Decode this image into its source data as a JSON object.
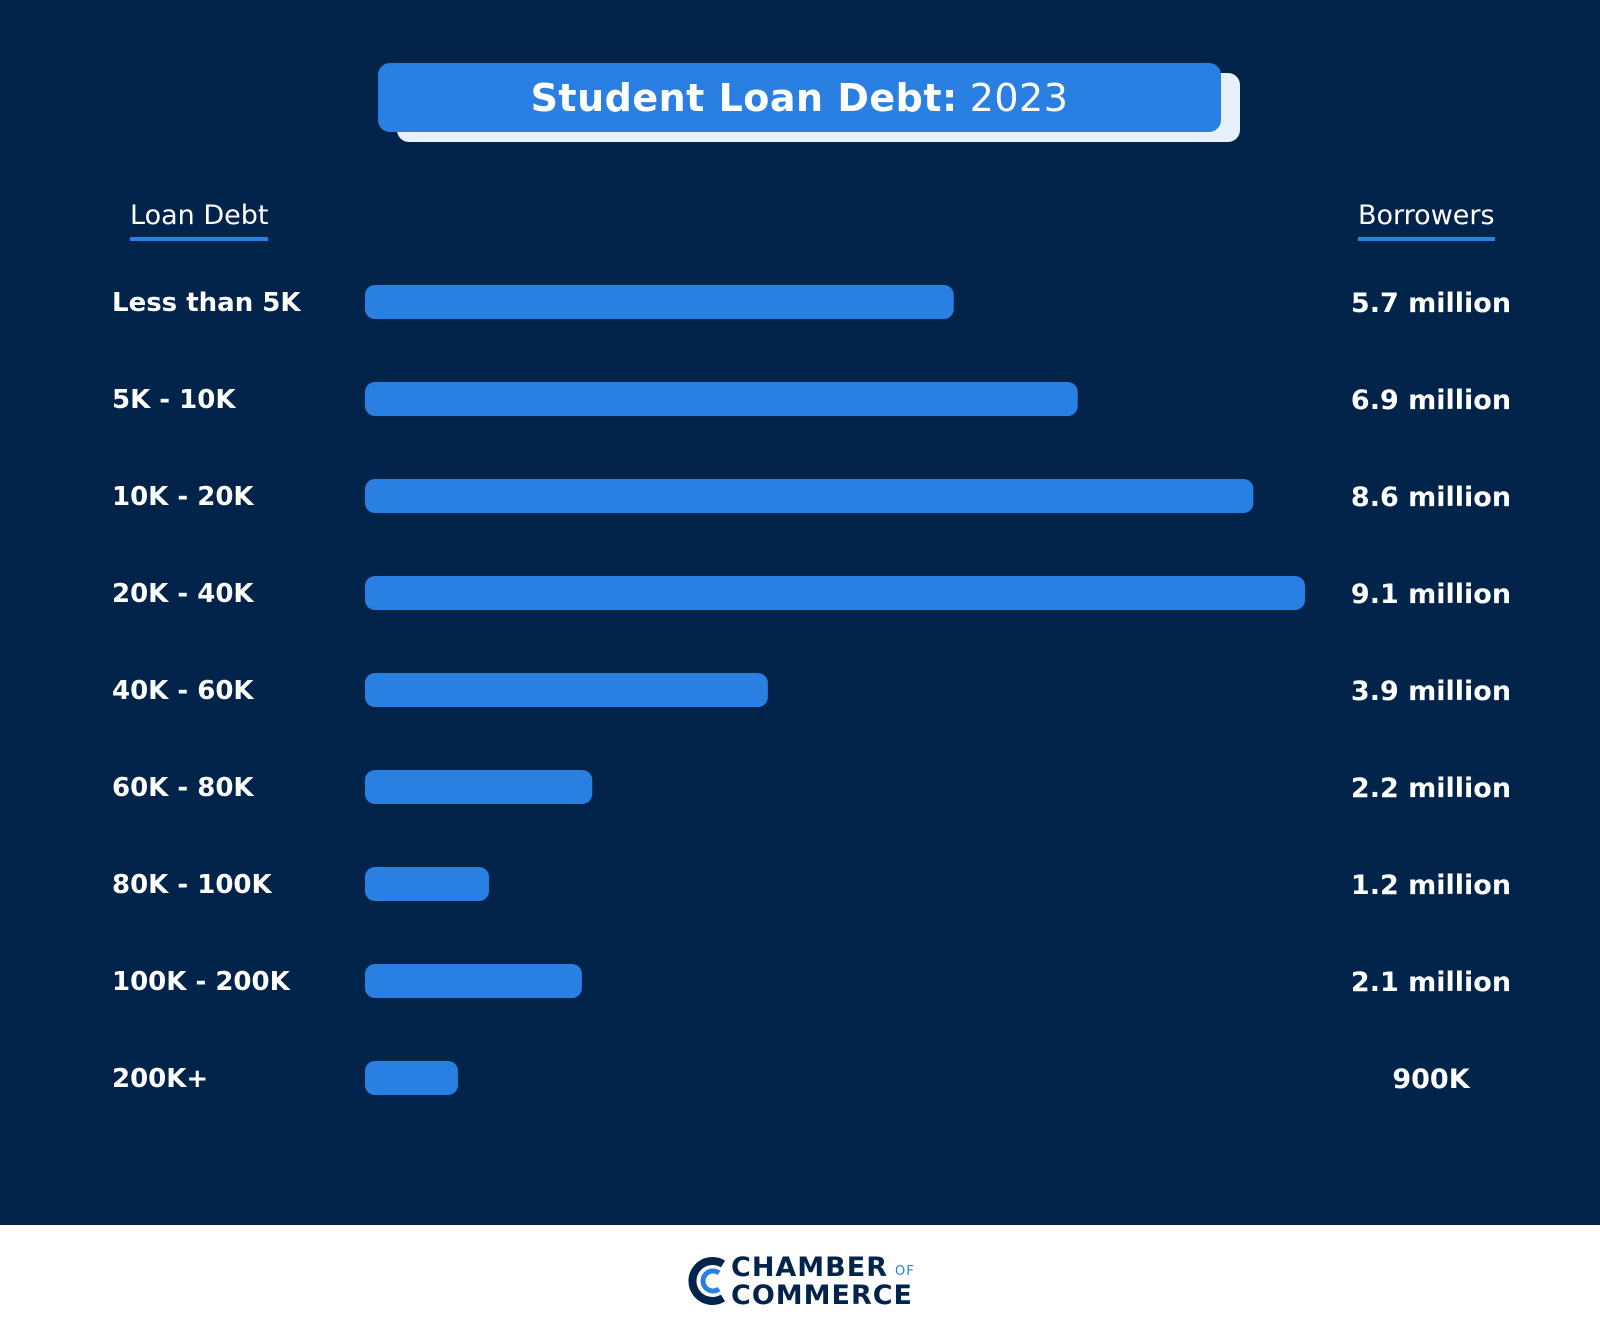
{
  "chart_data": {
    "type": "bar",
    "orientation": "horizontal",
    "title": "Student Loan Debt:",
    "title_year": "2023",
    "left_column_header": "Loan Debt",
    "right_column_header": "Borrowers",
    "categories": [
      "Less than 5K",
      "5K - 10K",
      "10K - 20K",
      "20K - 40K",
      "40K - 60K",
      "60K - 80K",
      "80K - 100K",
      "100K - 200K",
      "200K+"
    ],
    "values": [
      5.7,
      6.9,
      8.6,
      9.1,
      3.9,
      2.2,
      1.2,
      2.1,
      0.9
    ],
    "value_unit": "million",
    "value_labels": [
      "5.7 million",
      "6.9 million",
      "8.6 million",
      "9.1 million",
      "3.9 million",
      "2.2 million",
      "1.2 million",
      "2.1 million",
      "900K"
    ],
    "bar_color": "#2a80e2",
    "background_color": "#02244b"
  },
  "brand": {
    "line1": "CHAMBER",
    "of": "OF",
    "line2": "COMMERCE"
  }
}
